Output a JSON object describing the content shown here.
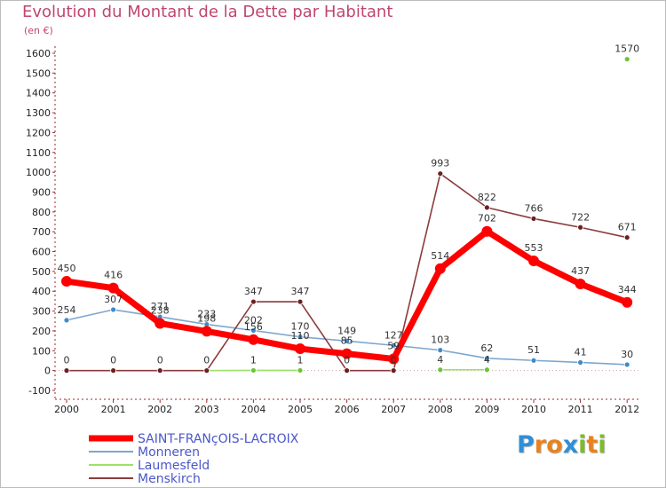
{
  "title": "Evolution du Montant de la Dette par Habitant",
  "unit_label": "(en €)",
  "logo": {
    "text": "Proxiti",
    "letters": [
      "P",
      "r",
      "o",
      "x",
      "i",
      "t",
      "i"
    ],
    "colors": [
      "#2f8fd8",
      "#e8821e",
      "#e8821e",
      "#2f8fd8",
      "#7dbb2c",
      "#e8821e",
      "#7dbb2c"
    ]
  },
  "chart_data": {
    "type": "line",
    "x": [
      "2000",
      "2001",
      "2002",
      "2003",
      "2004",
      "2005",
      "2006",
      "2007",
      "2008",
      "2009",
      "2010",
      "2011",
      "2012"
    ],
    "ylim": [
      -100,
      1600
    ],
    "yticks": [
      -100,
      0,
      100,
      200,
      300,
      400,
      500,
      600,
      700,
      800,
      900,
      1000,
      1100,
      1200,
      1300,
      1400,
      1500,
      1600
    ],
    "grid": false,
    "legend_position": "bottom-left",
    "series": [
      {
        "name": "SAINT-FRANçOIS-LACROIX",
        "color": "#ff0000",
        "marker_color": "#ff0000",
        "values": [
          450,
          416,
          238,
          198,
          156,
          110,
          85,
          59,
          514,
          702,
          553,
          437,
          344
        ],
        "labels": [
          "450",
          "416",
          "238",
          "198",
          "156",
          "110",
          "85",
          "59",
          "514",
          "702",
          "553",
          "437",
          "344"
        ]
      },
      {
        "name": "Monneren",
        "color": "#7ba7cf",
        "marker_color": "#3f8bc8",
        "values": [
          254,
          307,
          271,
          233,
          202,
          170,
          149,
          127,
          103,
          62,
          51,
          41,
          30
        ],
        "labels": [
          "254",
          "307",
          "271",
          "233",
          "202",
          "170",
          "149",
          "127",
          "103",
          "62",
          "51",
          "41",
          "30"
        ]
      },
      {
        "name": "Laumesfeld",
        "color": "#9ee06a",
        "marker_color": "#6cc23a",
        "values": [
          null,
          null,
          null,
          0,
          1,
          1,
          null,
          null,
          4,
          4,
          null,
          null,
          1570
        ],
        "labels": [
          "",
          "",
          "",
          "",
          "1",
          "1",
          "",
          "",
          "4",
          "4",
          "",
          "",
          "1570"
        ]
      },
      {
        "name": "Menskirch",
        "color": "#8a3c3c",
        "marker_color": "#6b1f1f",
        "values": [
          0,
          0,
          0,
          0,
          347,
          347,
          0,
          0,
          993,
          822,
          766,
          722,
          671
        ],
        "labels": [
          "0",
          "0",
          "0",
          "0",
          "347",
          "347",
          "0",
          "0",
          "993",
          "822",
          "766",
          "722",
          "671"
        ]
      }
    ]
  }
}
